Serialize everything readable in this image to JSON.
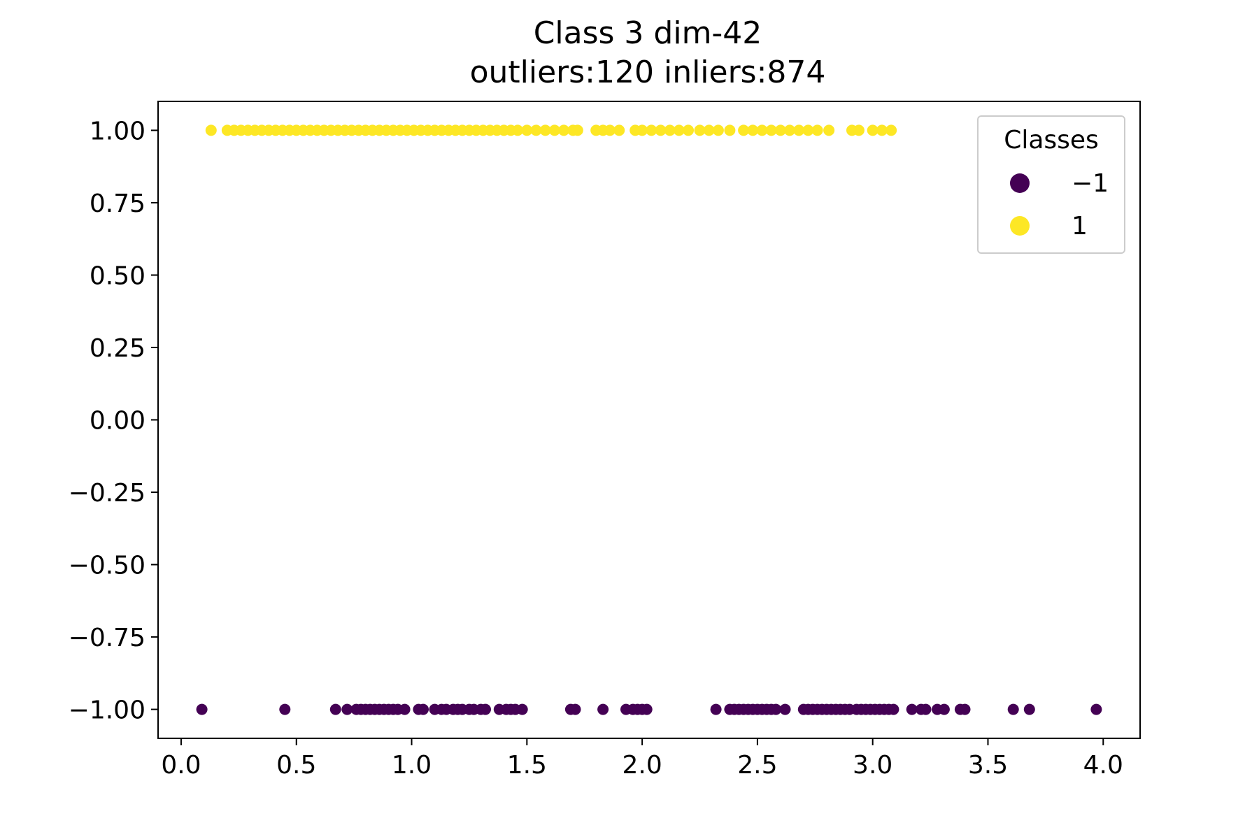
{
  "chart_data": {
    "type": "scatter",
    "title": "Class 3 dim-42",
    "subtitle": "outliers:120  inliers:874",
    "xlabel": "",
    "ylabel": "",
    "xlim": [
      -0.1,
      4.16
    ],
    "ylim": [
      -1.1,
      1.1
    ],
    "x_ticks": [
      0.0,
      0.5,
      1.0,
      1.5,
      2.0,
      2.5,
      3.0,
      3.5,
      4.0
    ],
    "x_tick_labels": [
      "0.0",
      "0.5",
      "1.0",
      "1.5",
      "2.0",
      "2.5",
      "3.0",
      "3.5",
      "4.0"
    ],
    "y_ticks": [
      1.0,
      0.75,
      0.5,
      0.25,
      0.0,
      -0.25,
      -0.5,
      -0.75,
      -1.0
    ],
    "y_tick_labels": [
      "1.00",
      "0.75",
      "0.50",
      "0.25",
      "0.00",
      "−0.25",
      "−0.50",
      "−0.75",
      "−1.00"
    ],
    "grid": false,
    "legend": {
      "title": "Classes",
      "placement": "top-right",
      "entries": [
        {
          "label": "−1",
          "color": "#440154"
        },
        {
          "label": "1",
          "color": "#fde725"
        }
      ]
    },
    "series": [
      {
        "name": "−1",
        "color": "#440154",
        "y": -1.0,
        "x": [
          0.09,
          0.45,
          0.67,
          0.72,
          0.76,
          0.78,
          0.8,
          0.82,
          0.84,
          0.86,
          0.88,
          0.9,
          0.92,
          0.94,
          0.97,
          1.03,
          1.05,
          1.1,
          1.13,
          1.15,
          1.18,
          1.2,
          1.22,
          1.25,
          1.27,
          1.3,
          1.32,
          1.38,
          1.41,
          1.43,
          1.45,
          1.48,
          1.69,
          1.71,
          1.83,
          1.93,
          1.96,
          1.98,
          2.0,
          2.02,
          2.32,
          2.38,
          2.4,
          2.42,
          2.44,
          2.46,
          2.48,
          2.5,
          2.52,
          2.54,
          2.56,
          2.58,
          2.62,
          2.7,
          2.72,
          2.74,
          2.76,
          2.78,
          2.8,
          2.82,
          2.84,
          2.86,
          2.88,
          2.9,
          2.93,
          2.95,
          2.97,
          2.99,
          3.01,
          3.03,
          3.05,
          3.07,
          3.09,
          3.17,
          3.21,
          3.23,
          3.28,
          3.31,
          3.38,
          3.4,
          3.61,
          3.68,
          3.97
        ]
      },
      {
        "name": "1",
        "color": "#fde725",
        "y": 1.0,
        "x": [
          0.13,
          0.2,
          0.23,
          0.26,
          0.29,
          0.32,
          0.35,
          0.38,
          0.41,
          0.44,
          0.47,
          0.5,
          0.53,
          0.56,
          0.59,
          0.62,
          0.65,
          0.68,
          0.71,
          0.74,
          0.77,
          0.8,
          0.83,
          0.86,
          0.89,
          0.92,
          0.95,
          0.98,
          1.01,
          1.04,
          1.07,
          1.1,
          1.13,
          1.16,
          1.19,
          1.22,
          1.25,
          1.28,
          1.31,
          1.34,
          1.37,
          1.4,
          1.43,
          1.46,
          1.5,
          1.54,
          1.58,
          1.62,
          1.66,
          1.7,
          1.72,
          1.8,
          1.83,
          1.86,
          1.9,
          1.97,
          2.0,
          2.04,
          2.08,
          2.12,
          2.16,
          2.2,
          2.25,
          2.29,
          2.33,
          2.38,
          2.44,
          2.48,
          2.52,
          2.56,
          2.6,
          2.64,
          2.68,
          2.72,
          2.76,
          2.81,
          2.91,
          2.94,
          3.0,
          3.04,
          3.08
        ]
      }
    ]
  }
}
